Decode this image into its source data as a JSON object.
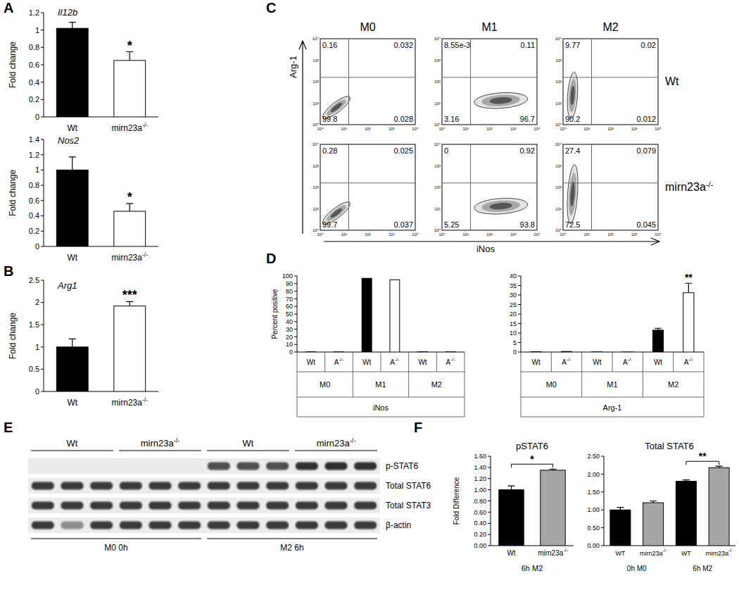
{
  "panel_letters": [
    "A",
    "B",
    "C",
    "D",
    "E",
    "F"
  ],
  "chart_data": [
    {
      "type": "bar",
      "title": "Il12b",
      "y_label": "Fold change",
      "categories": [
        "Wt",
        "mirn23a-/-"
      ],
      "values": [
        1.02,
        0.65
      ],
      "errors": [
        0.07,
        0.1
      ],
      "colors": [
        "#000000",
        "#ffffff"
      ],
      "ylim": [
        0,
        1.2
      ],
      "yticks": [
        0,
        0.2,
        0.4,
        0.6,
        0.8,
        1,
        1.2
      ],
      "grid": false,
      "annotations": [
        {
          "text": "*",
          "categories": [
            1
          ]
        }
      ]
    },
    {
      "type": "bar",
      "title": "Nos2",
      "y_label": "Fold change",
      "categories": [
        "Wt",
        "mirn23a-/-"
      ],
      "values": [
        1.0,
        0.46
      ],
      "errors": [
        0.17,
        0.1
      ],
      "colors": [
        "#000000",
        "#ffffff"
      ],
      "ylim": [
        0,
        1.4
      ],
      "yticks": [
        0,
        0.2,
        0.4,
        0.6,
        0.8,
        1,
        1.2,
        1.4
      ],
      "grid": false,
      "annotations": [
        {
          "text": "*",
          "categories": [
            1
          ]
        }
      ]
    },
    {
      "type": "bar",
      "title": "Arg1",
      "y_label": "Fold change",
      "categories": [
        "Wt",
        "mirn23a-/-"
      ],
      "values": [
        1.0,
        1.92
      ],
      "errors": [
        0.18,
        0.1
      ],
      "colors": [
        "#000000",
        "#ffffff"
      ],
      "ylim": [
        0,
        2.5
      ],
      "yticks": [
        0,
        0.5,
        1,
        1.5,
        2,
        2.5
      ],
      "grid": false,
      "annotations": [
        {
          "text": "***",
          "categories": [
            1
          ]
        }
      ]
    },
    {
      "type": "bar",
      "y_label": "Percent positive",
      "x_label": "iNos",
      "categories": [
        "Wt",
        "A-/-",
        "Wt",
        "A-/-",
        "Wt",
        "A-/-"
      ],
      "groups": [
        "M0",
        "M1",
        "M2"
      ],
      "values": [
        0.3,
        0.3,
        97,
        95,
        0.3,
        0.3
      ],
      "colors": [
        "#000000",
        "#ffffff",
        "#000000",
        "#ffffff",
        "#000000",
        "#ffffff"
      ],
      "ylim": [
        0,
        100
      ],
      "yticks": [
        0,
        10,
        20,
        30,
        40,
        50,
        60,
        70,
        80,
        90,
        100
      ],
      "grid": false
    },
    {
      "type": "bar",
      "x_label": "Arg-1",
      "categories": [
        "Wt",
        "A-/-",
        "Wt",
        "A-/-",
        "Wt",
        "A-/-"
      ],
      "groups": [
        "M0",
        "M1",
        "M2"
      ],
      "values": [
        0.16,
        0.28,
        0.05,
        0.05,
        11.5,
        31.2
      ],
      "errors": [
        null,
        null,
        null,
        null,
        1,
        5
      ],
      "colors": [
        "#000000",
        "#ffffff",
        "#000000",
        "#ffffff",
        "#000000",
        "#ffffff"
      ],
      "ylim": [
        0,
        40
      ],
      "yticks": [
        0,
        5,
        10,
        15,
        20,
        25,
        30,
        35,
        40
      ],
      "grid": false,
      "annotations": [
        {
          "text": "**",
          "categories": [
            5
          ]
        }
      ]
    },
    {
      "type": "bar",
      "title": "pSTAT6",
      "y_label": "Fold Difference",
      "x_label": "6h M2",
      "categories": [
        "Wt",
        "mirn23a-/-"
      ],
      "values": [
        1.0,
        1.35
      ],
      "errors": [
        0.07,
        0.02
      ],
      "colors": [
        "#000000",
        "#a6a6a6"
      ],
      "ylim": [
        0,
        1.6
      ],
      "yticks": [
        {
          "value": 0,
          "label": "0.00"
        },
        {
          "value": 0.2,
          "label": "0.20"
        },
        {
          "value": 0.4,
          "label": "0.40"
        },
        {
          "value": 0.6,
          "label": "0.60"
        },
        {
          "value": 0.8,
          "label": "0.80"
        },
        {
          "value": 1,
          "label": "1.00"
        },
        {
          "value": 1.2,
          "label": "1.20"
        },
        {
          "value": 1.4,
          "label": "1.40"
        },
        {
          "value": 1.6,
          "label": "1.60"
        }
      ],
      "grid": false,
      "annotations": [
        {
          "text": "*",
          "categories": [
            0,
            1
          ]
        }
      ]
    },
    {
      "type": "bar",
      "title": "Total STAT6",
      "categories": [
        "WT",
        "mirn23a-/-",
        "WT",
        "mirn23a-/-"
      ],
      "groups": [
        "0h M0",
        "6h M2"
      ],
      "values": [
        1.0,
        1.2,
        1.8,
        2.18
      ],
      "errors": [
        0.07,
        0.05,
        0.04,
        0.04
      ],
      "colors": [
        "#000000",
        "#a6a6a6",
        "#000000",
        "#a6a6a6"
      ],
      "ylim": [
        0,
        2.5
      ],
      "yticks": [
        {
          "value": 0,
          "label": "0.00"
        },
        {
          "value": 0.5,
          "label": "0.50"
        },
        {
          "value": 1,
          "label": "1.00"
        },
        {
          "value": 1.5,
          "label": "1.50"
        },
        {
          "value": 2,
          "label": "2.00"
        },
        {
          "value": 2.5,
          "label": "2.50"
        }
      ],
      "grid": false,
      "annotations": [
        {
          "text": "**",
          "categories": [
            2,
            3
          ]
        }
      ]
    }
  ],
  "flow": {
    "columns": [
      "M0",
      "M1",
      "M2"
    ],
    "y_label": "Arg-1",
    "x_label": "iNos",
    "ticks": [
      "10⁰",
      "10¹",
      "10²",
      "10³",
      "10⁴"
    ],
    "rows": [
      {
        "label": "Wt",
        "plots": [
          [
            "0.16",
            "0.032",
            "99.8",
            "0.028"
          ],
          [
            "8.55e-3",
            "0.11",
            "3.16",
            "96.7"
          ],
          [
            "9.77",
            "0.02",
            "90.2",
            "0.012"
          ]
        ]
      },
      {
        "label": "mirn23a-/-",
        "plots": [
          [
            "0.28",
            "0.025",
            "99.7",
            "0.037"
          ],
          [
            "0",
            "0.92",
            "5.25",
            "93.8"
          ],
          [
            "27.4",
            "0.079",
            "72.5",
            "0.045"
          ]
        ]
      }
    ]
  },
  "blot": {
    "groups": [
      "Wt",
      "mirn23a-/-",
      "Wt",
      "mirn23a-/-"
    ],
    "bands": [
      "p-STAT6",
      "Total STAT6",
      "Total STAT3",
      "β-actin"
    ],
    "conditions": [
      "M0 0h",
      "M2 6h"
    ]
  }
}
